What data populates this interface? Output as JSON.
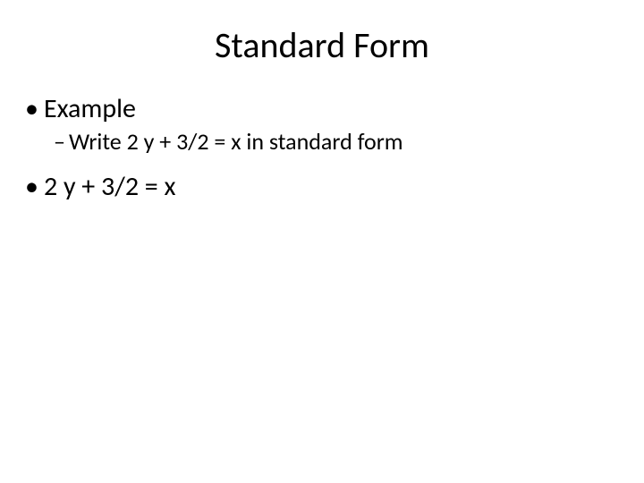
{
  "slide": {
    "title": "Standard Form",
    "title_fontsize": 40,
    "body_fontsize_l1": 30,
    "body_fontsize_l2": 26,
    "body_fontsize_l3": 30,
    "text_color": "#000000",
    "background_color": "#ffffff",
    "bullets": {
      "l1_marker": "•",
      "l1_text": "Example",
      "l2_marker": "–",
      "l2_text": "Write 2 y + 3/2 = x in standard form",
      "l3_marker": "•",
      "l3_text": "2 y + 3/2 = x"
    }
  }
}
